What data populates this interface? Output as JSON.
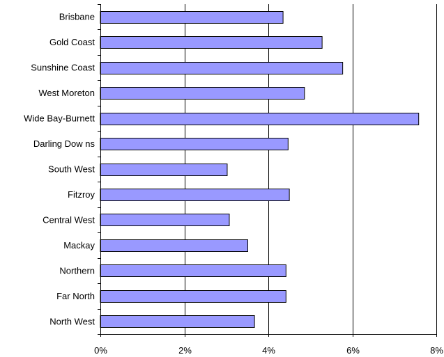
{
  "chart_data": {
    "type": "bar",
    "orientation": "horizontal",
    "categories": [
      "Brisbane",
      "Gold Coast",
      "Sunshine Coast",
      "West Moreton",
      "Wide Bay-Burnett",
      "Darling Dow ns",
      "South West",
      "Fitzroy",
      "Central West",
      "Mackay",
      "Northern",
      "Far North",
      "North West"
    ],
    "values": [
      4.35,
      5.28,
      5.77,
      4.86,
      7.58,
      4.47,
      3.02,
      4.5,
      3.07,
      3.51,
      4.42,
      4.42,
      3.67
    ],
    "x_ticks": [
      "0%",
      "2%",
      "4%",
      "6%",
      "8%"
    ],
    "xlim": [
      0,
      8
    ],
    "grid": "vertical",
    "bar_color": "#9999ff",
    "title": "",
    "xlabel": "",
    "ylabel": ""
  }
}
